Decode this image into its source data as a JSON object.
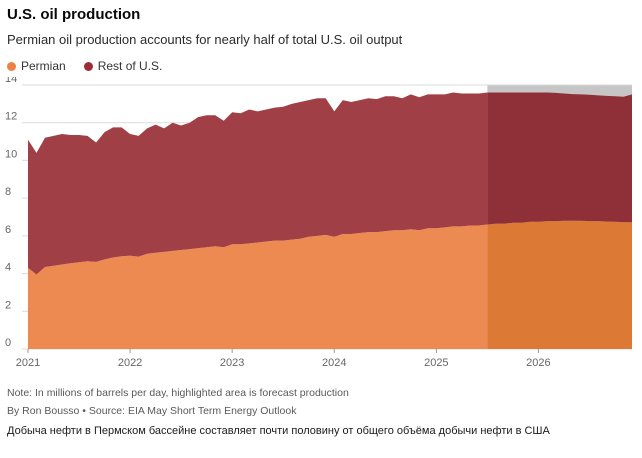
{
  "header": {
    "title": "U.S. oil production",
    "subtitle": "Permian oil production accounts for nearly half of total U.S. oil output"
  },
  "legend": {
    "items": [
      {
        "label": "Permian",
        "color": "#EE8143"
      },
      {
        "label": "Rest of U.S.",
        "color": "#9D2B35"
      }
    ]
  },
  "footer": {
    "note": "Note: In millions of barrels per day, highlighted area is forecast production",
    "byline": "By Ron Bousso • Source: EIA May Short Term Energy Outlook",
    "caption_ru": "Добыча нефти в Пермском бассейне составляет почти половину от общего объёма добычи нефти в США"
  },
  "chart_data": {
    "type": "area",
    "stacked": true,
    "title": "U.S. oil production",
    "xlabel": "",
    "ylabel": "millions of barrels per day",
    "xlim": [
      2021.0,
      2026.9167
    ],
    "ylim": [
      0,
      14
    ],
    "xticks": [
      2021,
      2022,
      2023,
      2024,
      2025,
      2026
    ],
    "yticks": [
      0,
      2,
      4,
      6,
      8,
      10,
      12,
      14
    ],
    "x_start": 2021.0,
    "x_step": 0.0833,
    "forecast_start_x": 2025.5,
    "legend_position": "top-left",
    "grid": true,
    "series": [
      {
        "name": "Permian",
        "values": [
          4.3,
          3.95,
          4.35,
          4.42,
          4.48,
          4.55,
          4.6,
          4.65,
          4.62,
          4.75,
          4.85,
          4.92,
          4.95,
          4.9,
          5.05,
          5.1,
          5.15,
          5.2,
          5.25,
          5.3,
          5.35,
          5.4,
          5.45,
          5.4,
          5.55,
          5.55,
          5.6,
          5.65,
          5.7,
          5.75,
          5.75,
          5.8,
          5.85,
          5.95,
          6.0,
          6.05,
          5.95,
          6.1,
          6.1,
          6.15,
          6.2,
          6.2,
          6.25,
          6.3,
          6.3,
          6.35,
          6.3,
          6.4,
          6.4,
          6.45,
          6.5,
          6.5,
          6.55,
          6.55,
          6.6,
          6.65,
          6.65,
          6.7,
          6.7,
          6.75,
          6.75,
          6.78,
          6.78,
          6.8,
          6.8,
          6.8,
          6.78,
          6.78,
          6.76,
          6.75,
          6.73,
          6.72
        ]
      },
      {
        "name": "Rest of U.S.",
        "values": [
          6.8,
          6.45,
          6.85,
          6.88,
          6.92,
          6.8,
          6.75,
          6.65,
          6.33,
          6.75,
          6.9,
          6.83,
          6.45,
          6.4,
          6.65,
          6.8,
          6.55,
          6.8,
          6.6,
          6.7,
          6.95,
          7.0,
          6.95,
          6.7,
          7.0,
          6.95,
          7.1,
          6.95,
          7.0,
          7.05,
          7.1,
          7.2,
          7.25,
          7.25,
          7.3,
          7.25,
          6.65,
          7.1,
          7.0,
          7.05,
          7.1,
          7.05,
          7.15,
          7.1,
          7.0,
          7.15,
          7.05,
          7.1,
          7.1,
          7.05,
          7.1,
          7.05,
          7.0,
          7.0,
          7.0,
          6.95,
          6.95,
          6.9,
          6.9,
          6.85,
          6.85,
          6.82,
          6.8,
          6.75,
          6.72,
          6.7,
          6.7,
          6.67,
          6.66,
          6.65,
          6.65,
          6.78
        ]
      }
    ],
    "colors": {
      "permian": "#EC8A51",
      "permian_forecast": "#DC7A35",
      "rest": "#A03F46",
      "rest_forecast": "#8F2F37",
      "forecast_bg": "#C6C6C6",
      "grid": "#DBDBDB",
      "axis_text": "#666666",
      "tick": "#999999"
    }
  }
}
